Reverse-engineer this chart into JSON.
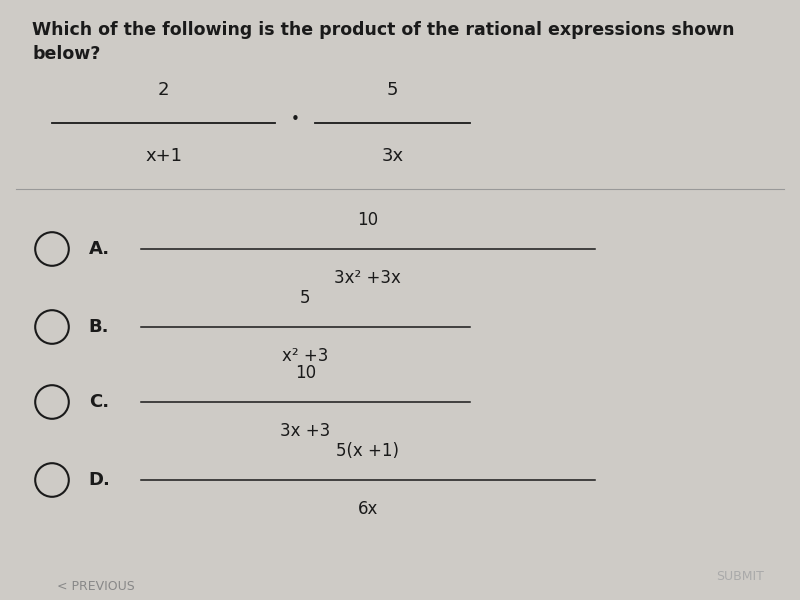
{
  "bg_color": "#cecbc6",
  "question_line1": "Which of the following is the product of the rational expressions shown",
  "question_line2": "below?",
  "question_fontsize": 12.5,
  "text_color": "#1a1a1a",
  "line_color": "#999999",
  "submit_text": "SUBMIT",
  "previous_text": "< PREVIOUS",
  "options": [
    {
      "label": "A.",
      "num": "10",
      "den": "3x² +3x"
    },
    {
      "label": "B.",
      "num": "5",
      "den": "x² +3"
    },
    {
      "label": "C.",
      "num": "10",
      "den": "3x +3"
    },
    {
      "label": "D.",
      "num": "5(x +1)",
      "den": "6x"
    }
  ]
}
